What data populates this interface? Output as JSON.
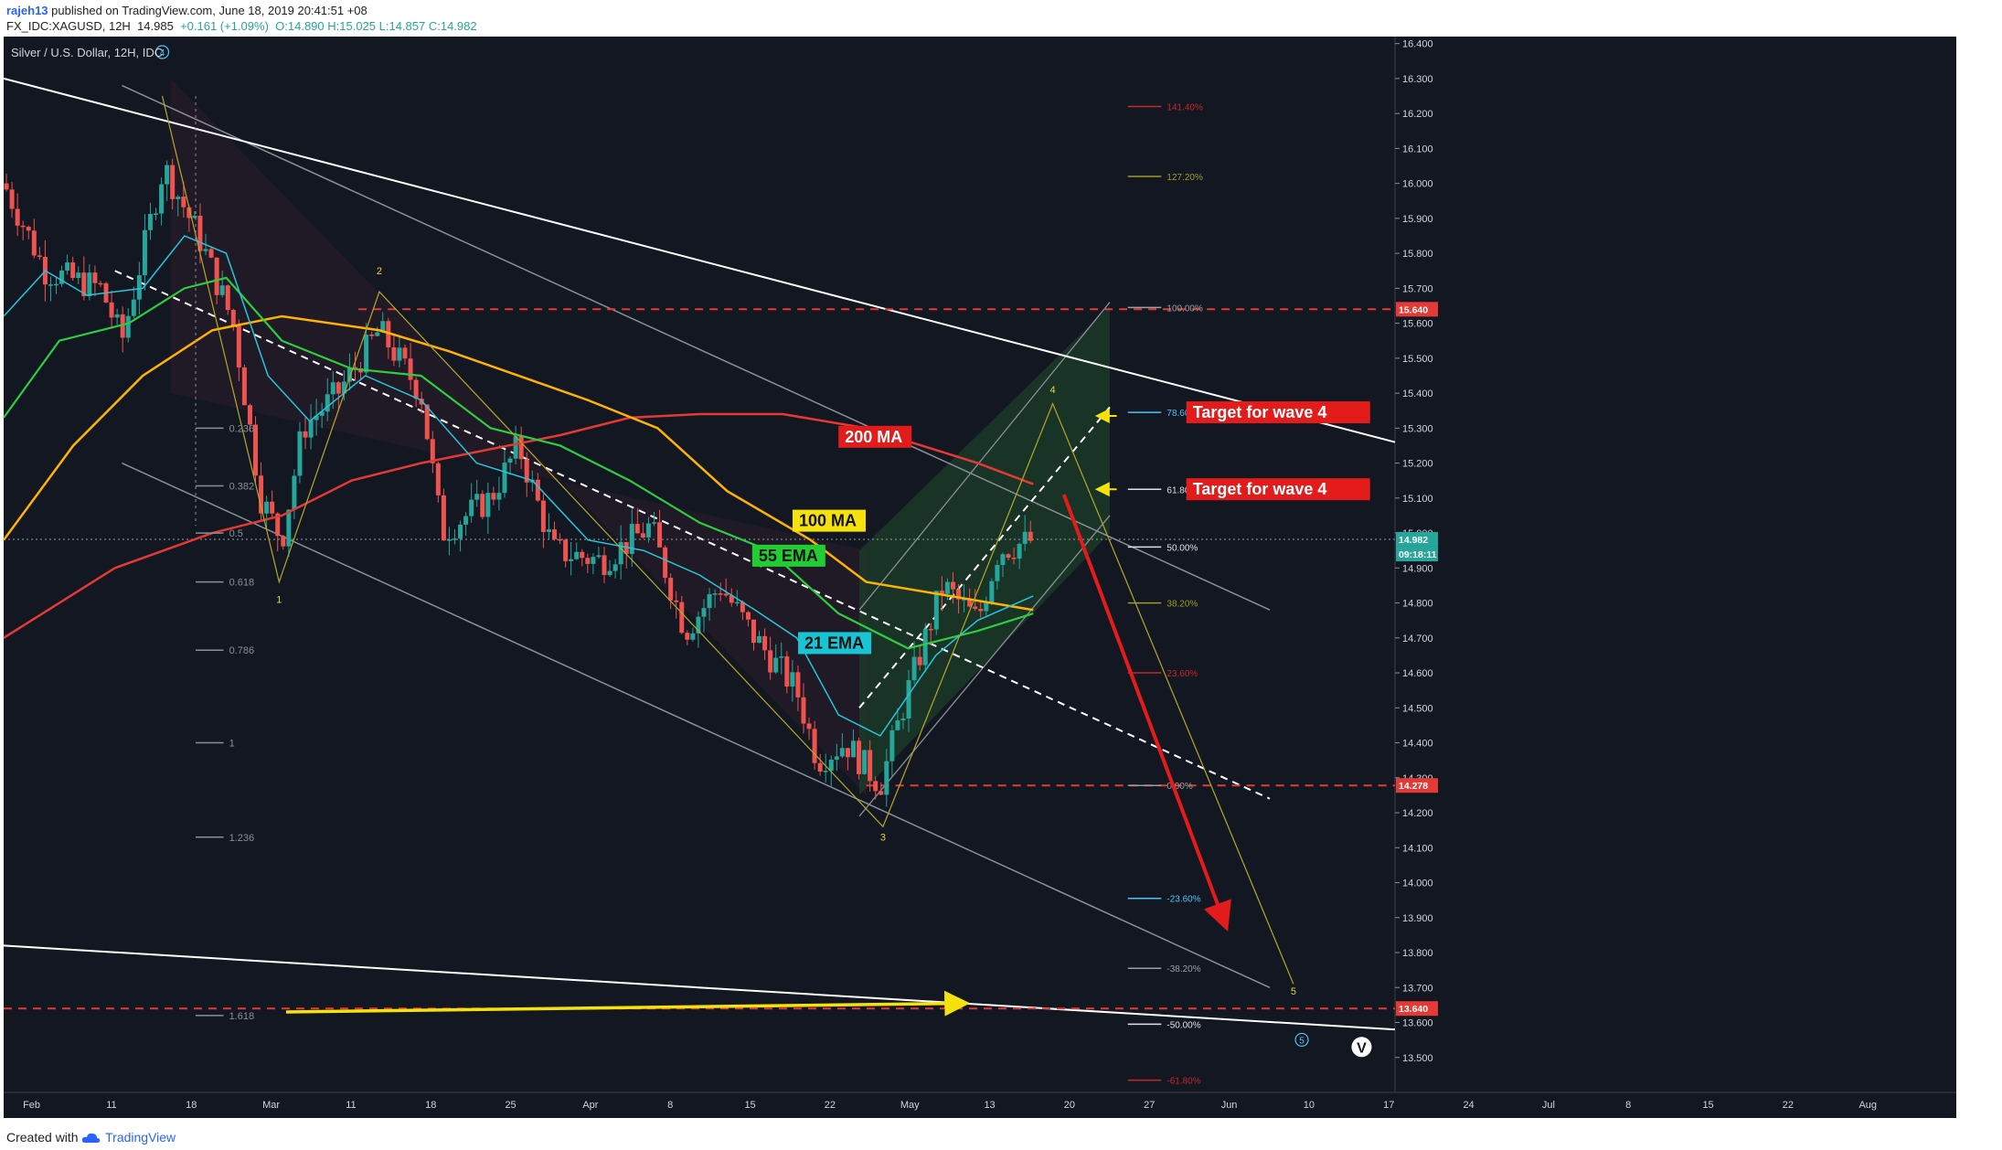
{
  "header": {
    "author": "rajeh13",
    "published_text": " published on TradingView.com, June 18, 2019 20:41:51 +08",
    "symbol_line": "FX_IDC:XAGUSD, 12H",
    "last": "14.985",
    "change": "+0.161 (+1.09%)",
    "ohlc": "O:14.890 H:15.025 L:14.857 C:14.982"
  },
  "footer": {
    "created_with": "Created with",
    "brand": "TradingView"
  },
  "chart_data": {
    "type": "candlestick",
    "title": "Silver / U.S. Dollar, 12H, IDC",
    "ylim": [
      13.4,
      16.42
    ],
    "y_ticks": [
      16.4,
      16.3,
      16.2,
      16.1,
      16.0,
      15.9,
      15.8,
      15.7,
      15.6,
      15.5,
      15.4,
      15.3,
      15.2,
      15.1,
      15.0,
      14.9,
      14.8,
      14.7,
      14.6,
      14.5,
      14.4,
      14.3,
      14.2,
      14.1,
      14.0,
      13.9,
      13.8,
      13.7,
      13.6,
      13.5
    ],
    "x_ticks": [
      "Feb",
      "11",
      "18",
      "Mar",
      "11",
      "18",
      "25",
      "Apr",
      "8",
      "15",
      "22",
      "May",
      "13",
      "20",
      "27",
      "Jun",
      "10",
      "17",
      "24",
      "Jul",
      "8",
      "15",
      "22",
      "Aug"
    ],
    "price_tags": [
      {
        "label": "15.640",
        "value": 15.64,
        "color": "#e53935"
      },
      {
        "label": "14.982",
        "value": 14.982,
        "color": "#26a69a"
      },
      {
        "label": "09:18:11",
        "value": 14.94,
        "color": "#26a69a"
      },
      {
        "label": "14.278",
        "value": 14.278,
        "color": "#e53935"
      },
      {
        "label": "13.640",
        "value": 13.64,
        "color": "#e53935"
      }
    ],
    "fib_right": [
      {
        "label": "141.40%",
        "value": 16.22,
        "color": "#c62828"
      },
      {
        "label": "127.20%",
        "value": 16.02,
        "color": "#9e9d24"
      },
      {
        "label": "100.00%",
        "value": 15.645,
        "color": "#9e9e9e"
      },
      {
        "label": "78.60%",
        "value": 15.345,
        "color": "#4fc3f7"
      },
      {
        "label": "61.80%",
        "value": 15.125,
        "color": "#e0e0e0"
      },
      {
        "label": "50.00%",
        "value": 14.96,
        "color": "#e0e0e0"
      },
      {
        "label": "38.20%",
        "value": 14.8,
        "color": "#9e9d24"
      },
      {
        "label": "23.60%",
        "value": 14.6,
        "color": "#c62828"
      },
      {
        "label": "0.00%",
        "value": 14.278,
        "color": "#9e9e9e"
      },
      {
        "label": "-23.60%",
        "value": 13.955,
        "color": "#4fc3f7"
      },
      {
        "label": "-38.20%",
        "value": 13.755,
        "color": "#9e9e9e"
      },
      {
        "label": "-50.00%",
        "value": 13.595,
        "color": "#e0e0e0"
      },
      {
        "label": "-61.80%",
        "value": 13.435,
        "color": "#c62828"
      }
    ],
    "fib_left": [
      {
        "label": "0.236",
        "value": 15.3
      },
      {
        "label": "0.382",
        "value": 15.135
      },
      {
        "label": "0.5",
        "value": 15.0
      },
      {
        "label": "0.618",
        "value": 14.86
      },
      {
        "label": "0.786",
        "value": 14.665
      },
      {
        "label": "1",
        "value": 14.4
      },
      {
        "label": "1.236",
        "value": 14.13
      },
      {
        "label": "1.618",
        "value": 13.62
      }
    ],
    "wave_labels": [
      {
        "label": "4",
        "x": 0.114,
        "value": 16.365,
        "circled": true,
        "color": "#4fc3f7"
      },
      {
        "label": "1",
        "x": 0.198,
        "value": 14.8,
        "color": "#e6d14a"
      },
      {
        "label": "2",
        "x": 0.27,
        "value": 15.74,
        "color": "#e6d14a"
      },
      {
        "label": "3",
        "x": 0.632,
        "value": 14.12,
        "color": "#e6d14a"
      },
      {
        "label": "4",
        "x": 0.754,
        "value": 15.4,
        "color": "#e6d14a"
      },
      {
        "label": "5",
        "x": 0.927,
        "value": 13.68,
        "color": "#e6d14a"
      },
      {
        "label": "5",
        "x": 0.933,
        "value": 13.54,
        "circled": true,
        "color": "#4fc3f7"
      }
    ],
    "annotations": [
      {
        "text": "Target for wave 4",
        "value": 15.34,
        "bg": "#e31b1b",
        "fg": "#ffffff"
      },
      {
        "text": "Target for wave 4",
        "value": 15.12,
        "bg": "#e31b1b",
        "fg": "#ffffff"
      },
      {
        "text": "200 MA",
        "value": 15.27,
        "bg": "#e31b1b",
        "fg": "#ffffff"
      },
      {
        "text": "100 MA",
        "value": 15.03,
        "bg": "#f5e20d",
        "fg": "#111111"
      },
      {
        "text": "55 EMA",
        "value": 14.93,
        "bg": "#22cc33",
        "fg": "#111111"
      },
      {
        "text": "21 EMA",
        "value": 14.68,
        "bg": "#19c4d4",
        "fg": "#111111"
      }
    ],
    "colors": {
      "background": "#131722",
      "up": "#26a69a",
      "down": "#ef5350",
      "ema21": "#26c6da",
      "ema55": "#2ecc40",
      "ma100": "#ffb300",
      "ma200": "#e53935",
      "channel": "#8a8f98",
      "trend": "#ffffff",
      "wave": "#b5a82a"
    }
  }
}
